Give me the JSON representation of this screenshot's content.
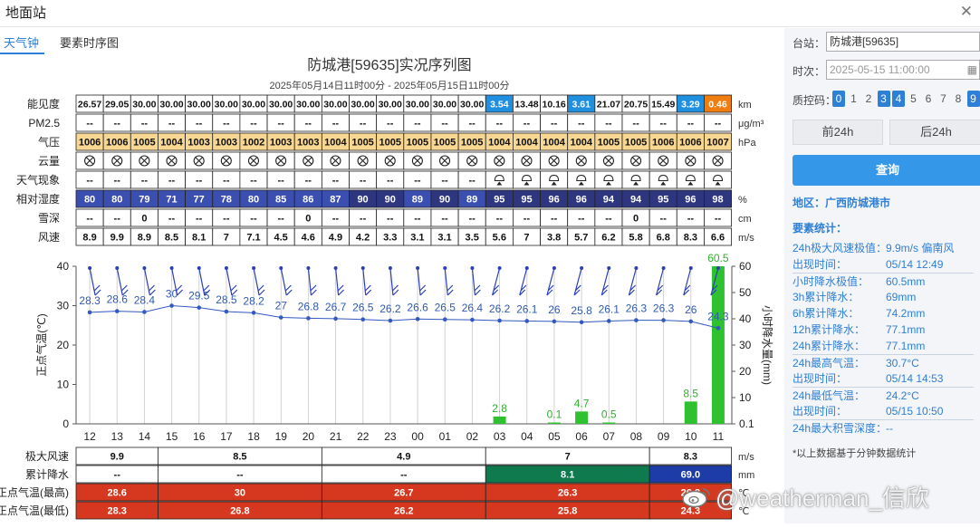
{
  "window": {
    "title": "地面站"
  },
  "tabs": [
    "天气钟",
    "要素时序图"
  ],
  "chart_header": {
    "title": "防城港[59635]实况序列图",
    "subtitle": "2025年05月14日11时00分 - 2025年05月15日11时00分"
  },
  "table": {
    "hours": [
      "12",
      "13",
      "14",
      "15",
      "16",
      "17",
      "18",
      "19",
      "20",
      "21",
      "22",
      "23",
      "00",
      "01",
      "02",
      "03",
      "04",
      "05",
      "06",
      "07",
      "08",
      "09",
      "10",
      "11"
    ],
    "rows": [
      {
        "label": "能见度",
        "unit": "km",
        "values": [
          "26.57",
          "29.05",
          "30.00",
          "30.00",
          "30.00",
          "30.00",
          "30.00",
          "30.00",
          "30.00",
          "30.00",
          "30.00",
          "30.00",
          "30.00",
          "30.00",
          "30.00",
          "3.54",
          "13.48",
          "10.16",
          "3.61",
          "21.07",
          "20.75",
          "15.49",
          "3.29",
          "0.46"
        ]
      },
      {
        "label": "PM2.5",
        "unit": "μg/m³",
        "values": [
          "--",
          "--",
          "--",
          "--",
          "--",
          "--",
          "--",
          "--",
          "--",
          "--",
          "--",
          "--",
          "--",
          "--",
          "--",
          "--",
          "--",
          "--",
          "--",
          "--",
          "--",
          "--",
          "--",
          "--"
        ]
      },
      {
        "label": "气压",
        "unit": "hPa",
        "values": [
          "1006",
          "1006",
          "1005",
          "1004",
          "1003",
          "1003",
          "1002",
          "1003",
          "1003",
          "1004",
          "1005",
          "1005",
          "1005",
          "1005",
          "1005",
          "1004",
          "1004",
          "1004",
          "1004",
          "1005",
          "1005",
          "1006",
          "1006",
          "1007"
        ]
      },
      {
        "label": "云量",
        "unit": "",
        "values": [
          "⊗",
          "⊗",
          "⊗",
          "⊗",
          "⊗",
          "⊗",
          "⊗",
          "⊗",
          "⊗",
          "⊗",
          "⊗",
          "⊗",
          "⊗",
          "⊗",
          "⊗",
          "⊗",
          "⊗",
          "⊗",
          "⊗",
          "⊗",
          "⊗",
          "⊗",
          "⊗",
          "⊗"
        ]
      },
      {
        "label": "天气现象",
        "unit": "",
        "values": [
          "--",
          "--",
          "--",
          "--",
          "--",
          "--",
          "--",
          "--",
          "--",
          "--",
          "--",
          "--",
          "--",
          "--",
          "--",
          "rain",
          "rain",
          "rain",
          "rain",
          "rain",
          "rain",
          "rain",
          "rain",
          "rain"
        ]
      },
      {
        "label": "相对湿度",
        "unit": "%",
        "values": [
          "80",
          "80",
          "79",
          "71",
          "77",
          "78",
          "80",
          "85",
          "86",
          "87",
          "90",
          "90",
          "89",
          "90",
          "89",
          "95",
          "95",
          "96",
          "96",
          "94",
          "94",
          "95",
          "96",
          "98"
        ]
      },
      {
        "label": "雪深",
        "unit": "cm",
        "values": [
          "--",
          "--",
          "0",
          "--",
          "--",
          "--",
          "--",
          "--",
          "0",
          "--",
          "--",
          "--",
          "--",
          "--",
          "--",
          "--",
          "--",
          "--",
          "--",
          "--",
          "0",
          "--",
          "--",
          "--"
        ]
      },
      {
        "label": "风速",
        "unit": "m/s",
        "values": [
          "8.9",
          "9.9",
          "8.9",
          "8.5",
          "8.1",
          "7",
          "7.1",
          "4.5",
          "4.6",
          "4.9",
          "4.2",
          "3.3",
          "3.1",
          "3.1",
          "3.5",
          "5.6",
          "7",
          "3.8",
          "5.7",
          "6.2",
          "5.8",
          "6.8",
          "8.3",
          "6.6"
        ]
      }
    ]
  },
  "chart_data": {
    "type": "line",
    "x": [
      "12",
      "13",
      "14",
      "15",
      "16",
      "17",
      "18",
      "19",
      "20",
      "21",
      "22",
      "23",
      "00",
      "01",
      "02",
      "03",
      "04",
      "05",
      "06",
      "07",
      "08",
      "09",
      "10",
      "11"
    ],
    "series": [
      {
        "name": "正点气温",
        "values": [
          28.3,
          28.6,
          28.4,
          30,
          29.5,
          28.5,
          28.2,
          27,
          26.8,
          26.7,
          26.5,
          26.2,
          26.6,
          26.5,
          26.4,
          26.2,
          26.1,
          26,
          25.8,
          26.1,
          26.3,
          26.3,
          26,
          24.3
        ]
      },
      {
        "name": "小时降水量",
        "values": [
          null,
          null,
          null,
          null,
          null,
          null,
          null,
          null,
          null,
          null,
          null,
          null,
          null,
          null,
          null,
          2.8,
          null,
          0.1,
          4.7,
          0.5,
          null,
          null,
          8.5,
          60.5
        ]
      }
    ],
    "ylabel": "正点气温(℃)",
    "y2label": "小时降水量(mm)",
    "ylim": [
      0,
      40
    ],
    "y2lim": [
      0.1,
      60
    ],
    "yticks": [
      "0",
      "10",
      "20",
      "30",
      "40"
    ],
    "y2ticks": [
      "0.1",
      "10",
      "20",
      "30",
      "40",
      "50",
      "60"
    ],
    "grid": true
  },
  "summary_rows": [
    {
      "label": "极大风速",
      "unit": "m/s",
      "cells": [
        {
          "span": 3,
          "text": "9.9"
        },
        {
          "span": 6,
          "text": "8.5"
        },
        {
          "span": 6,
          "text": "4.9"
        },
        {
          "span": 6,
          "text": "7"
        },
        {
          "span": 3,
          "text": "8.3"
        }
      ]
    },
    {
      "label": "累计降水",
      "unit": "mm",
      "cells": [
        {
          "span": 3,
          "text": "--"
        },
        {
          "span": 6,
          "text": "--"
        },
        {
          "span": 6,
          "text": "--"
        },
        {
          "span": 6,
          "text": "8.1",
          "color": "#0e7a4e"
        },
        {
          "span": 3,
          "text": "69.0",
          "color": "#1e3ca8"
        }
      ]
    },
    {
      "label": "正点气温(最高)",
      "unit": "℃",
      "cells": [
        {
          "span": 3,
          "text": "28.6"
        },
        {
          "span": 6,
          "text": "30"
        },
        {
          "span": 6,
          "text": "26.7"
        },
        {
          "span": 6,
          "text": "26.3"
        },
        {
          "span": 3,
          "text": "26.3"
        }
      ]
    },
    {
      "label": "正点气温(最低)",
      "unit": "℃",
      "cells": [
        {
          "span": 3,
          "text": "28.3"
        },
        {
          "span": 6,
          "text": "26.8"
        },
        {
          "span": 6,
          "text": "26.2"
        },
        {
          "span": 6,
          "text": "25.8"
        },
        {
          "span": 3,
          "text": "24.3"
        }
      ]
    }
  ],
  "colors": {
    "visibility_low_blue": "#1f8fe0",
    "visibility_very_low_orange": "#ef7d10",
    "pressure_bg": "#f7d792",
    "humidity_normal": "#3a4fb0",
    "humidity_high": "#2e3680",
    "temp_line": "#3358c0",
    "rain_bar": "#2fc12f",
    "summary_red": "#d6381f"
  },
  "side": {
    "station_label": "台站：",
    "station_value": "防城港[59635]",
    "time_label": "时次：",
    "time_value": "2025-05-15 11:00:00",
    "qc_label": "质控码：",
    "qc_codes": [
      "0",
      "1",
      "2",
      "3",
      "4",
      "5",
      "6",
      "7",
      "8",
      "9"
    ],
    "qc_selected": [
      "0",
      "3",
      "4",
      "9"
    ],
    "prev_button": "前24h",
    "next_button": "后24h",
    "query_button": "查询",
    "region": "地区：广西防城港市",
    "stats_title": "要素统计：",
    "stats": [
      {
        "label": "24h极大风速极值：",
        "value": "9.9m/s 偏南风"
      },
      {
        "label": "出现时间：",
        "value": "05/14 12:49"
      },
      {
        "label": "小时降水极值：",
        "value": "60.5mm",
        "sep": true
      },
      {
        "label": "3h累计降水：",
        "value": "69mm"
      },
      {
        "label": "6h累计降水：",
        "value": "74.2mm"
      },
      {
        "label": "12h累计降水：",
        "value": "77.1mm"
      },
      {
        "label": "24h累计降水：",
        "value": "77.1mm"
      },
      {
        "label": "24h最高气温：",
        "value": "30.7°C",
        "sep": true
      },
      {
        "label": "出现时间：",
        "value": "05/14 14:53"
      },
      {
        "label": "24h最低气温：",
        "value": "24.2°C",
        "sep": true
      },
      {
        "label": "出现时间：",
        "value": "05/15 10:50"
      },
      {
        "label": "24h最大积雪深度：",
        "value": "--",
        "sep": true
      }
    ],
    "note": "*以上数据基于分钟数据统计"
  },
  "watermark": "@weatherman_信欣"
}
